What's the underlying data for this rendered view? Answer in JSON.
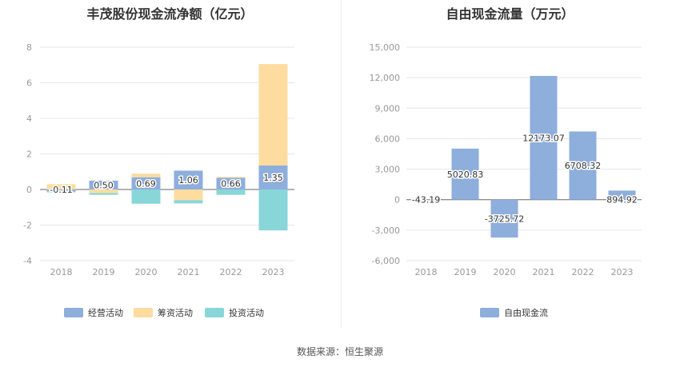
{
  "source": "数据来源：恒生聚源",
  "colors": {
    "operating": "#8eaedc",
    "financing": "#fedca0",
    "investing": "#89d6d9",
    "fcf": "#8eaedc",
    "grid": "#e6e6e6",
    "axis": "#666666"
  },
  "chart_data": [
    {
      "type": "bar",
      "stacked": true,
      "title": "丰茂股份现金流净额（亿元）",
      "categories": [
        "2018",
        "2019",
        "2020",
        "2021",
        "2022",
        "2023"
      ],
      "ylim": [
        -4,
        8
      ],
      "yticks": [
        -4,
        -2,
        0,
        2,
        4,
        6,
        8
      ],
      "series": [
        {
          "name": "经营活动",
          "values": [
            -0.11,
            0.5,
            0.69,
            1.06,
            0.66,
            1.35
          ],
          "labels": [
            "-0.11",
            "0.50",
            "0.69",
            "1.06",
            "0.66",
            "1.35"
          ]
        },
        {
          "name": "筹资活动",
          "values": [
            0.3,
            -0.2,
            0.2,
            -0.6,
            0.05,
            5.7
          ]
        },
        {
          "name": "投资活动",
          "values": [
            -0.05,
            -0.1,
            -0.8,
            -0.18,
            -0.3,
            -2.3
          ]
        }
      ],
      "legend": "bottom"
    },
    {
      "type": "bar",
      "title": "自由现金流量（万元）",
      "categories": [
        "2018",
        "2019",
        "2020",
        "2021",
        "2022",
        "2023"
      ],
      "ylim": [
        -6000,
        15000
      ],
      "yticks": [
        -6000,
        -3000,
        0,
        3000,
        6000,
        9000,
        12000,
        15000
      ],
      "ytick_labels": [
        "-6,000",
        "-3,000",
        "0",
        "3,000",
        "6,000",
        "9,000",
        "12,000",
        "15,000"
      ],
      "series": [
        {
          "name": "自由现金流",
          "values": [
            -43.19,
            5020.83,
            -3725.72,
            12173.07,
            6708.32,
            894.92
          ],
          "labels": [
            "-43.19",
            "5020.83",
            "-3725.72",
            "12173.07",
            "6708.32",
            "894.92"
          ]
        }
      ],
      "legend": "bottom"
    }
  ]
}
